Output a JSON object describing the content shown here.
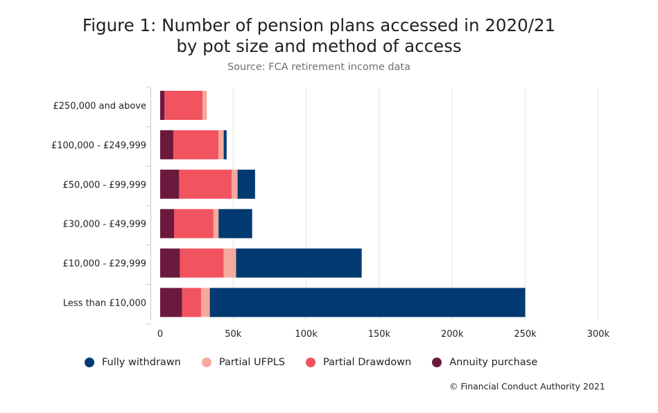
{
  "title_line1": "Figure 1: Number of pension plans accessed in 2020/21",
  "title_line2": "by pot size and method of access",
  "subtitle": "Source: FCA retirement income data",
  "credit": "© Financial Conduct Authority 2021",
  "colors": {
    "annuity": "#6b1a3e",
    "drawdown": "#f2545f",
    "ufpls": "#f5aa9d",
    "withdrawn": "#003a70",
    "grid": "#e3e3e3",
    "axis": "#c8c8c8"
  },
  "legend": [
    {
      "label": "Fully withdrawn",
      "color": "#003a70"
    },
    {
      "label": "Partial UFPLS",
      "color": "#f5aa9d"
    },
    {
      "label": "Partial Drawdown",
      "color": "#f2545f"
    },
    {
      "label": "Annuity purchase",
      "color": "#6b1a3e"
    }
  ],
  "chart_data": {
    "type": "bar",
    "orientation": "horizontal",
    "stacked": true,
    "categories": [
      "£250,000 and above",
      "£100,000 - £249,999",
      "£50,000 - £99,999",
      "£30,000 - £49,999",
      "£10,000 - £29,999",
      "Less than £10,000"
    ],
    "series": [
      {
        "name": "Annuity purchase",
        "color": "#6b1a3e",
        "values": [
          3000,
          9000,
          13000,
          9500,
          13500,
          15000
        ]
      },
      {
        "name": "Partial Drawdown",
        "color": "#f2545f",
        "values": [
          26000,
          31000,
          36000,
          27000,
          30000,
          13000
        ]
      },
      {
        "name": "Partial UFPLS",
        "color": "#f5aa9d",
        "values": [
          3000,
          3500,
          4000,
          3500,
          8500,
          6000
        ]
      },
      {
        "name": "Fully withdrawn",
        "color": "#003a70",
        "values": [
          0,
          2000,
          12000,
          23000,
          86000,
          216000
        ]
      }
    ],
    "xlim": [
      0,
      300000
    ],
    "xticks": [
      0,
      50000,
      100000,
      150000,
      200000,
      250000,
      300000
    ],
    "xtick_labels": [
      "0",
      "50k",
      "100k",
      "150k",
      "200k",
      "250k",
      "300k"
    ],
    "grid": true,
    "legend_position": "bottom"
  }
}
